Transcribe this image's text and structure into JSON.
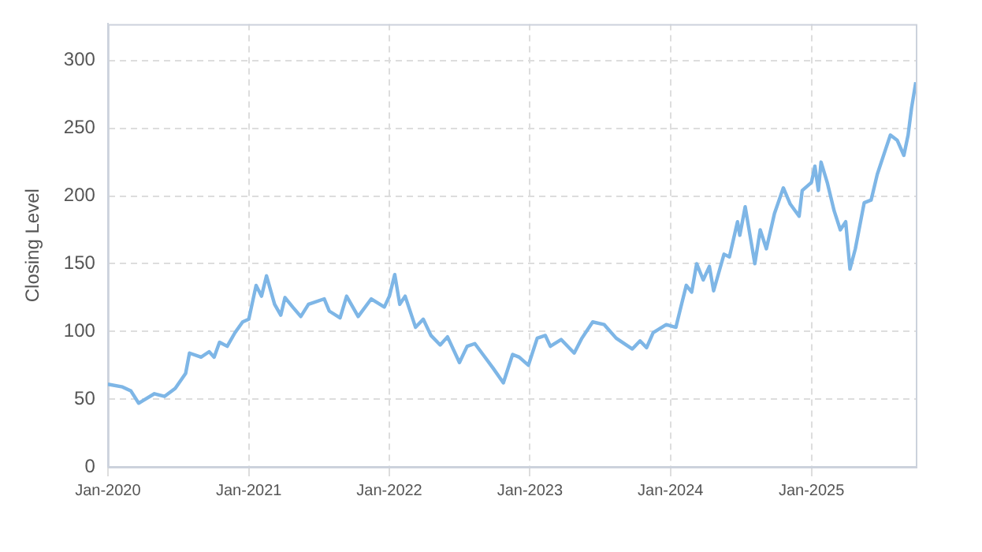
{
  "chart_data": {
    "type": "line",
    "ylabel": "Closing Level",
    "x": [
      "2020-01-01",
      "2020-02-08",
      "2020-03-01",
      "2020-03-21",
      "2020-05-01",
      "2020-05-27",
      "2020-06-24",
      "2020-07-21",
      "2020-07-31",
      "2020-08-30",
      "2020-09-20",
      "2020-10-03",
      "2020-10-17",
      "2020-11-06",
      "2020-11-26",
      "2020-12-16",
      "2021-01-01",
      "2021-01-20",
      "2021-02-03",
      "2021-02-16",
      "2021-03-09",
      "2021-03-25",
      "2021-04-05",
      "2021-04-25",
      "2021-05-16",
      "2021-06-05",
      "2021-07-16",
      "2021-07-29",
      "2021-08-26",
      "2021-09-12",
      "2021-10-12",
      "2021-11-15",
      "2021-12-19",
      "2022-01-01",
      "2022-01-15",
      "2022-01-28",
      "2022-02-11",
      "2022-03-10",
      "2022-03-30",
      "2022-04-19",
      "2022-05-13",
      "2022-06-01",
      "2022-07-02",
      "2022-07-22",
      "2022-08-11",
      "2022-09-01",
      "2022-09-27",
      "2022-10-24",
      "2022-11-17",
      "2022-12-04",
      "2022-12-28",
      "2023-01-20",
      "2023-02-10",
      "2023-02-23",
      "2023-03-23",
      "2023-04-26",
      "2023-05-16",
      "2023-06-13",
      "2023-07-13",
      "2023-08-13",
      "2023-09-24",
      "2023-10-14",
      "2023-10-31",
      "2023-11-17",
      "2023-12-21",
      "2024-01-15",
      "2024-01-28",
      "2024-02-11",
      "2024-02-25",
      "2024-03-09",
      "2024-03-26",
      "2024-04-11",
      "2024-04-22",
      "2024-05-19",
      "2024-06-02",
      "2024-06-23",
      "2024-06-29",
      "2024-07-13",
      "2024-08-07",
      "2024-08-21",
      "2024-09-06",
      "2024-09-27",
      "2024-10-20",
      "2024-11-07",
      "2024-11-30",
      "2024-12-08",
      "2025-01-01",
      "2025-01-10",
      "2025-01-19",
      "2025-01-26",
      "2025-02-11",
      "2025-03-01",
      "2025-03-17",
      "2025-03-31",
      "2025-04-11",
      "2025-04-25",
      "2025-05-18",
      "2025-06-05",
      "2025-06-21",
      "2025-07-12",
      "2025-07-25",
      "2025-08-12",
      "2025-08-29",
      "2025-09-09",
      "2025-09-18",
      "2025-09-29"
    ],
    "series": [
      {
        "color": "#7eb6e6",
        "values": [
          61,
          59,
          56,
          47,
          54,
          52,
          58,
          69,
          84,
          81,
          85,
          81,
          92,
          89,
          99,
          107,
          109,
          134,
          126,
          141,
          120,
          112,
          125,
          118,
          111,
          120,
          124,
          115,
          110,
          126,
          111,
          124,
          118,
          126,
          142,
          120,
          126,
          103,
          109,
          97,
          90,
          96,
          77,
          89,
          91,
          83,
          73,
          62,
          83,
          81,
          75,
          95,
          97,
          89,
          94,
          84,
          95,
          107,
          105,
          95,
          87,
          93,
          88,
          99,
          105,
          103,
          118,
          134,
          129,
          150,
          138,
          148,
          130,
          157,
          155,
          181,
          171,
          192,
          150,
          175,
          161,
          187,
          206,
          194,
          185,
          204,
          210,
          222,
          204,
          225,
          210,
          189,
          175,
          181,
          146,
          161,
          195,
          197,
          216,
          234,
          245,
          241,
          230,
          245,
          265,
          284
        ]
      }
    ],
    "xlim": [
      "2020-01-01",
      "2025-09-29"
    ],
    "xticks": [
      {
        "value": "2020-01-01",
        "label": "Jan-2020"
      },
      {
        "value": "2021-01-01",
        "label": "Jan-2021"
      },
      {
        "value": "2022-01-01",
        "label": "Jan-2022"
      },
      {
        "value": "2023-01-01",
        "label": "Jan-2023"
      },
      {
        "value": "2024-01-01",
        "label": "Jan-2024"
      },
      {
        "value": "2025-01-01",
        "label": "Jan-2025"
      }
    ],
    "ylim": [
      0,
      327
    ],
    "yticks": [
      0,
      50,
      100,
      150,
      200,
      250,
      300
    ],
    "grid": true,
    "legend": false,
    "marker": "none",
    "line_style": "solid"
  }
}
